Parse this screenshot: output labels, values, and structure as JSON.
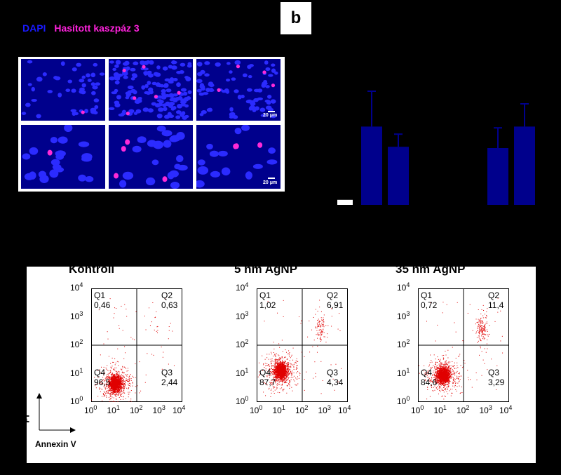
{
  "legend": {
    "dapi": "DAPI",
    "casp": "Hasított kaszpáz 3"
  },
  "panel_label": "b",
  "micrograph": {
    "scale_top": "20 μm",
    "scale_bottom": "20 μm"
  },
  "colors": {
    "nucleus": "#2b2bff",
    "tile_bg": "#00008c",
    "casp": "#ff2ad8",
    "bar": "#00008c",
    "dots": "#e00000"
  },
  "chart_data": [
    {
      "type": "bar",
      "panel": "b",
      "categories": [
        "",
        "",
        "",
        "",
        "",
        ""
      ],
      "values": [
        0.04,
        0.62,
        0.46,
        null,
        0.45,
        0.62
      ],
      "errors": [
        0,
        0.28,
        0.1,
        null,
        0.16,
        0.18
      ],
      "ylim": [
        0,
        1
      ]
    },
    {
      "type": "scatter",
      "title": "Kontroll",
      "xlabel": "Annexin V",
      "ylabel": "PI",
      "x_ticks": [
        "0",
        "1",
        "2",
        "3",
        "4"
      ],
      "y_ticks": [
        "0",
        "1",
        "2",
        "3",
        "4"
      ],
      "xlim": [
        0,
        4
      ],
      "ylim": [
        0,
        4
      ],
      "gate_x": 2,
      "gate_y": 2,
      "quadrants": [
        {
          "name": "Q1",
          "value": "0,46"
        },
        {
          "name": "Q2",
          "value": "0,63"
        },
        {
          "name": "Q3",
          "value": "2,44"
        },
        {
          "name": "Q4",
          "value": "96,5"
        }
      ],
      "cluster": {
        "x": 1.05,
        "y": 0.65
      }
    },
    {
      "type": "scatter",
      "title": "5 nm AgNP",
      "x_ticks": [
        "0",
        "1",
        "2",
        "3",
        "4"
      ],
      "y_ticks": [
        "0",
        "1",
        "2",
        "3",
        "4"
      ],
      "xlim": [
        0,
        4
      ],
      "ylim": [
        0,
        4
      ],
      "gate_x": 2,
      "gate_y": 2,
      "quadrants": [
        {
          "name": "Q1",
          "value": "1,02"
        },
        {
          "name": "Q2",
          "value": "6,91"
        },
        {
          "name": "Q3",
          "value": "4,34"
        },
        {
          "name": "Q4",
          "value": "87,7"
        }
      ],
      "cluster": {
        "x": 1.05,
        "y": 1.1
      }
    },
    {
      "type": "scatter",
      "title": "35 nm AgNP",
      "x_ticks": [
        "0",
        "1",
        "2",
        "3",
        "4"
      ],
      "y_ticks": [
        "0",
        "1",
        "2",
        "3",
        "4"
      ],
      "xlim": [
        0,
        4
      ],
      "ylim": [
        0,
        4
      ],
      "gate_x": 2,
      "gate_y": 2,
      "quadrants": [
        {
          "name": "Q1",
          "value": "0,72"
        },
        {
          "name": "Q2",
          "value": "11,4"
        },
        {
          "name": "Q3",
          "value": "3,29"
        },
        {
          "name": "Q4",
          "value": "84,6"
        }
      ],
      "cluster": {
        "x": 1.1,
        "y": 0.95
      }
    }
  ]
}
